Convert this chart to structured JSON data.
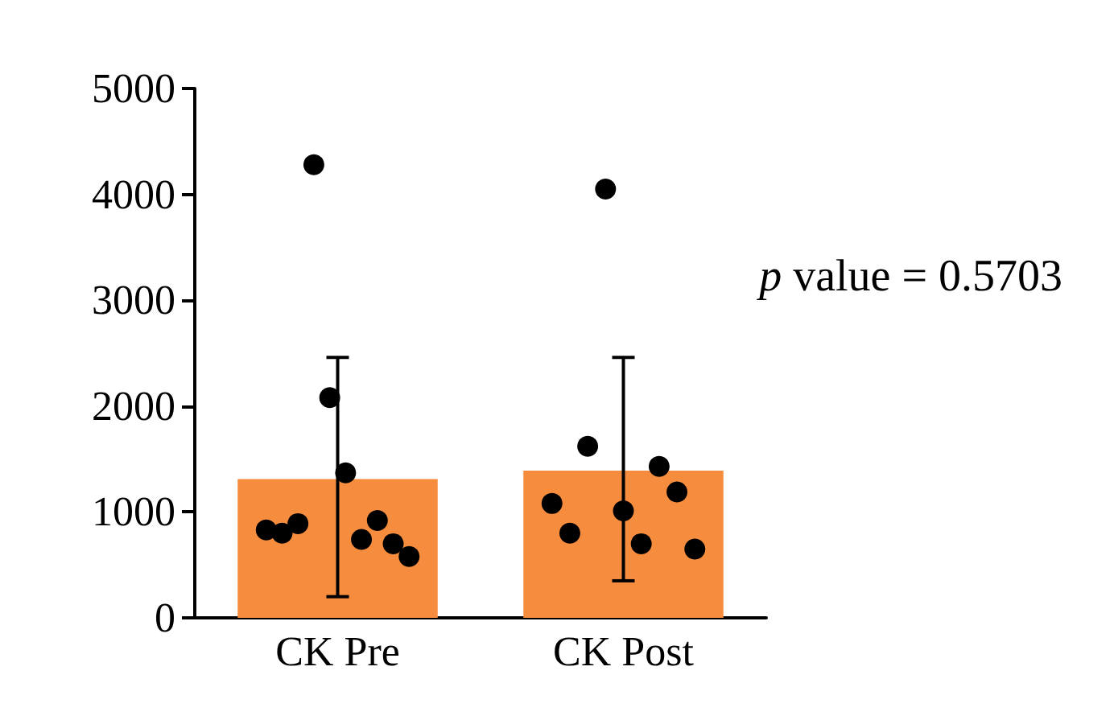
{
  "chart_data": {
    "type": "bar",
    "categories": [
      "CK Pre",
      "CK Post"
    ],
    "series": [
      {
        "color": "#f58c3e",
        "values": [
          1310,
          1390
        ],
        "errors": [
          [
            200,
            2460
          ],
          [
            350,
            2460
          ]
        ]
      },
      {
        "type": "scatter",
        "color": "#000000",
        "x": [
          "CK Pre",
          "CK Pre",
          "CK Pre",
          "CK Pre",
          "CK Pre",
          "CK Pre",
          "CK Pre",
          "CK Pre",
          "CK Pre",
          "CK Pre",
          "CK Post",
          "CK Post",
          "CK Post",
          "CK Post",
          "CK Post",
          "CK Post",
          "CK Post",
          "CK Post",
          "CK Post"
        ],
        "values": [
          830,
          800,
          890,
          4280,
          2080,
          1370,
          740,
          920,
          700,
          580,
          1080,
          800,
          1620,
          4050,
          1010,
          700,
          1430,
          1190,
          650
        ]
      }
    ],
    "ylim": [
      0,
      5000
    ],
    "yticks": [
      0,
      1000,
      2000,
      3000,
      4000,
      5000
    ],
    "annotations": [
      "p value = 0.5703"
    ]
  }
}
